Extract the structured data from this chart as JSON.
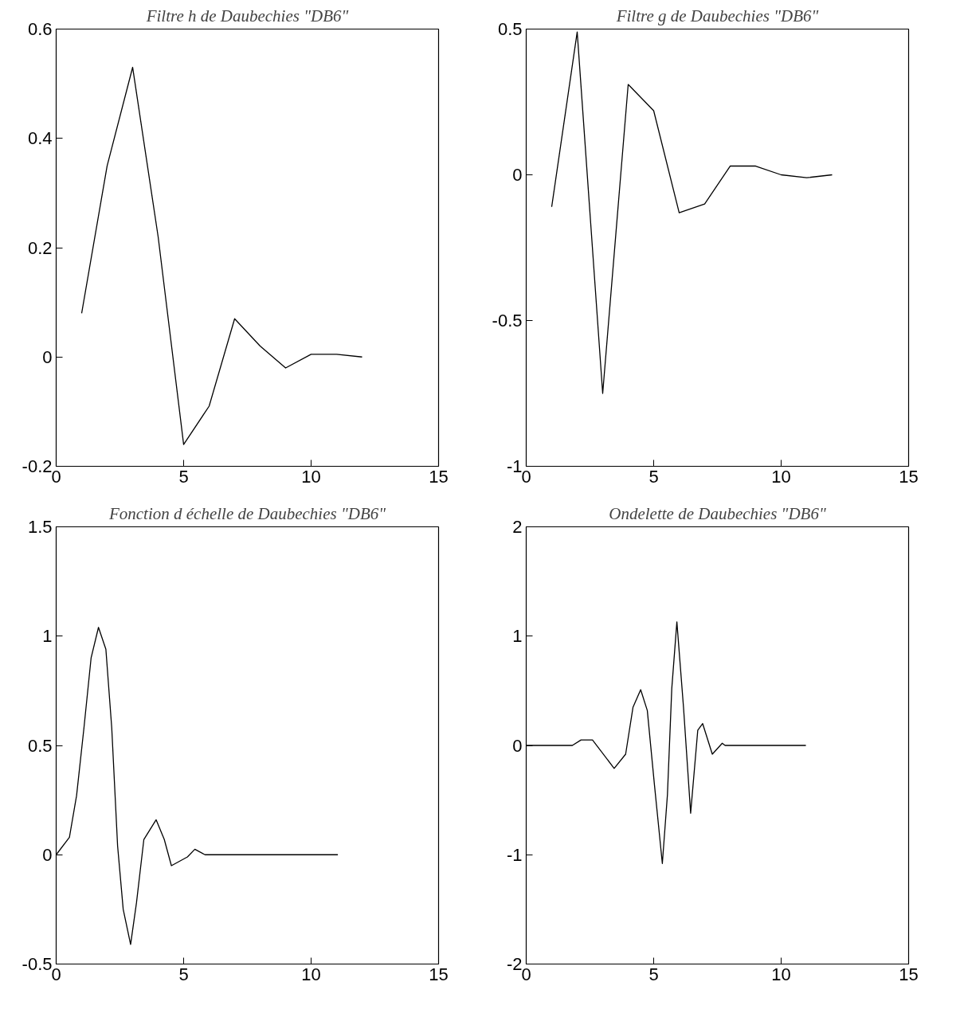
{
  "chart_data": [
    {
      "type": "line",
      "title": "Filtre h de Daubechies \"DB6\"",
      "x": [
        1,
        2,
        3,
        4,
        5,
        6,
        7,
        8,
        9,
        10,
        11,
        12
      ],
      "series": [
        {
          "color": "#000000",
          "values": [
            0.08,
            0.35,
            0.53,
            0.22,
            -0.16,
            -0.09,
            0.07,
            0.02,
            -0.02,
            0.005,
            0.005,
            0
          ]
        }
      ],
      "xlim": [
        0,
        15
      ],
      "xticks": [
        0,
        5,
        10,
        15
      ],
      "ylim": [
        -0.2,
        0.6
      ],
      "yticks": [
        -0.2,
        0,
        0.2,
        0.4,
        0.6
      ],
      "grid": false
    },
    {
      "type": "line",
      "title": "Filtre g de Daubechies \"DB6\"",
      "x": [
        1,
        2,
        3,
        4,
        5,
        6,
        7,
        8,
        9,
        10,
        11,
        12
      ],
      "series": [
        {
          "color": "#000000",
          "values": [
            -0.11,
            0.49,
            -0.75,
            0.31,
            0.22,
            -0.13,
            -0.1,
            0.03,
            0.03,
            0,
            -0.01,
            0
          ]
        }
      ],
      "xlim": [
        0,
        15
      ],
      "xticks": [
        0,
        5,
        10,
        15
      ],
      "ylim": [
        -1,
        0.5
      ],
      "yticks": [
        -1,
        -0.5,
        0,
        0.5
      ],
      "grid": false
    },
    {
      "type": "line",
      "title": "Fonction d échelle de Daubechies \"DB6\"",
      "x": [
        0,
        0.52,
        0.8,
        1.09,
        1.37,
        1.66,
        1.95,
        2.18,
        2.41,
        2.63,
        2.92,
        3.15,
        3.44,
        3.92,
        4.24,
        4.52,
        5.15,
        5.44,
        5.84,
        11.05
      ],
      "series": [
        {
          "color": "#000000",
          "values": [
            0,
            0.08,
            0.27,
            0.58,
            0.9,
            1.04,
            0.94,
            0.58,
            0.04,
            -0.25,
            -0.41,
            -0.22,
            0.07,
            0.16,
            0.07,
            -0.05,
            -0.01,
            0.025,
            0,
            0
          ]
        }
      ],
      "xlim": [
        0,
        15
      ],
      "xticks": [
        0,
        5,
        10,
        15
      ],
      "ylim": [
        -0.5,
        1.5
      ],
      "yticks": [
        -0.5,
        0,
        0.5,
        1,
        1.5
      ],
      "grid": false
    },
    {
      "type": "line",
      "title": "Ondelette de Daubechies \"DB6\"",
      "x": [
        0,
        1.81,
        2.15,
        2.6,
        3.45,
        3.9,
        4.19,
        4.49,
        4.75,
        5.03,
        5.34,
        5.54,
        5.71,
        5.91,
        6.17,
        6.45,
        6.73,
        6.92,
        7.3,
        7.69,
        7.8,
        10.97
      ],
      "series": [
        {
          "color": "#000000",
          "values": [
            0,
            0,
            0.05,
            0.05,
            -0.21,
            -0.08,
            0.35,
            0.51,
            0.32,
            -0.36,
            -1.08,
            -0.45,
            0.52,
            1.13,
            0.35,
            -0.62,
            0.14,
            0.2,
            -0.08,
            0.02,
            0,
            0
          ]
        }
      ],
      "xlim": [
        0,
        15
      ],
      "xticks": [
        0,
        5,
        10,
        15
      ],
      "ylim": [
        -2,
        2
      ],
      "yticks": [
        -2,
        -1,
        0,
        1,
        2
      ],
      "grid": false
    }
  ]
}
